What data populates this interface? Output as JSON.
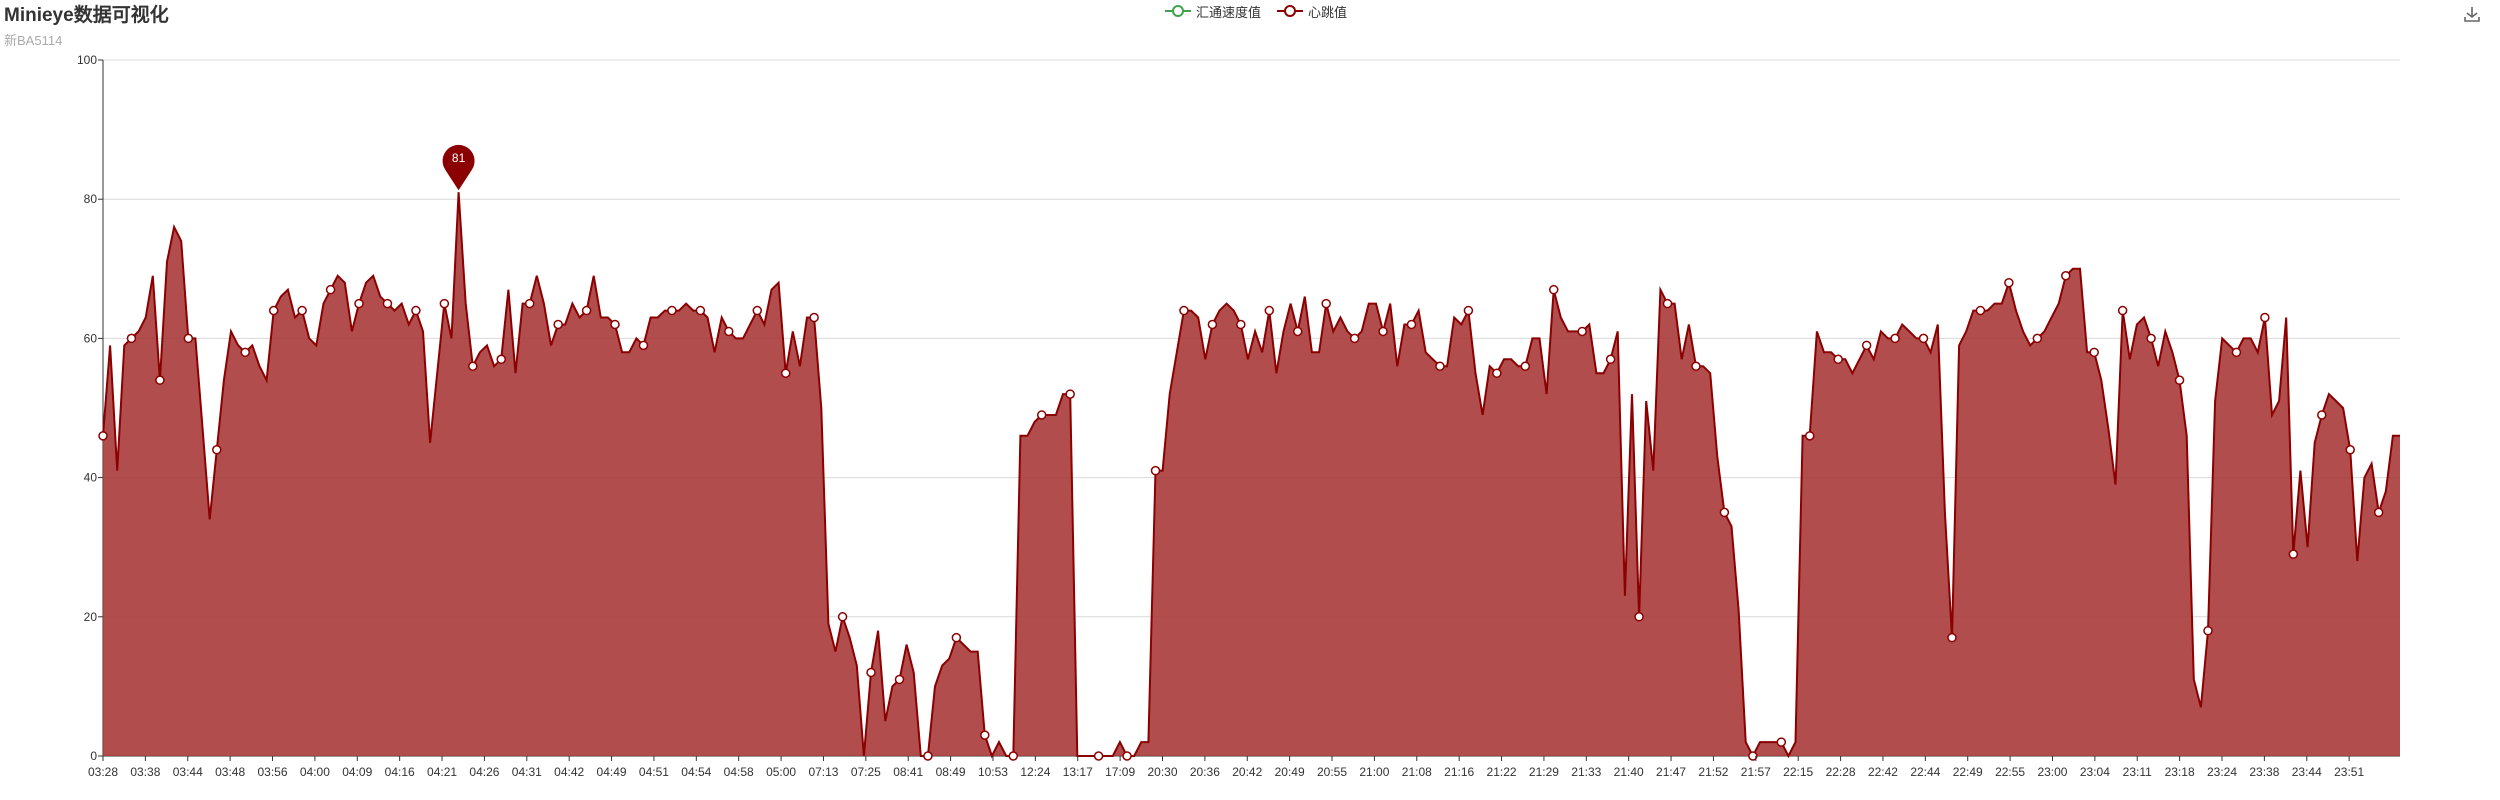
{
  "header": {
    "title": "Minieye数据可视化",
    "subtitle": "新BA5114"
  },
  "legend": [
    {
      "label": "汇通速度值",
      "color": "#3fa34d"
    },
    {
      "label": "心跳值",
      "color": "#8b0000"
    }
  ],
  "toolbar": {
    "download_icon": "download-icon"
  },
  "chart_data": {
    "type": "area",
    "title": "Minieye数据可视化",
    "subtitle": "新BA5114",
    "ylim": [
      0,
      100
    ],
    "yticks": [
      0,
      20,
      40,
      60,
      80,
      100
    ],
    "grid": true,
    "legend_position": "top-center",
    "x_tick_labels": [
      "03:28",
      "03:38",
      "03:44",
      "03:48",
      "03:56",
      "04:00",
      "04:09",
      "04:16",
      "04:21",
      "04:26",
      "04:31",
      "04:42",
      "04:49",
      "04:51",
      "04:54",
      "04:58",
      "05:00",
      "07:13",
      "07:25",
      "08:41",
      "08:49",
      "10:53",
      "12:24",
      "13:17",
      "17:09",
      "20:30",
      "20:36",
      "20:42",
      "20:49",
      "20:55",
      "21:00",
      "21:08",
      "21:16",
      "21:22",
      "21:29",
      "21:33",
      "21:40",
      "21:47",
      "21:52",
      "21:57",
      "22:15",
      "22:28",
      "22:42",
      "22:44",
      "22:49",
      "22:55",
      "23:00",
      "23:04",
      "23:11",
      "23:18",
      "23:24",
      "23:38",
      "23:44",
      "23:51"
    ],
    "max_marker": {
      "label": "81",
      "value": 81
    },
    "series": [
      {
        "name": "汇通速度值",
        "color": "#3fa34d",
        "values": []
      },
      {
        "name": "心跳值",
        "color": "#8b0000",
        "values": [
          46,
          59,
          41,
          59,
          60,
          61,
          63,
          69,
          54,
          71,
          76,
          74,
          60,
          60,
          47,
          34,
          44,
          54,
          61,
          59,
          58,
          59,
          56,
          54,
          64,
          66,
          67,
          63,
          64,
          60,
          59,
          65,
          67,
          69,
          68,
          61,
          65,
          68,
          69,
          66,
          65,
          64,
          65,
          62,
          64,
          61,
          45,
          55,
          65,
          60,
          81,
          65,
          56,
          58,
          59,
          56,
          57,
          67,
          55,
          65,
          65,
          69,
          65,
          59,
          62,
          62,
          65,
          63,
          64,
          69,
          63,
          63,
          62,
          58,
          58,
          60,
          59,
          63,
          63,
          64,
          64,
          64,
          65,
          64,
          64,
          63,
          58,
          63,
          61,
          60,
          60,
          62,
          64,
          62,
          67,
          68,
          55,
          61,
          56,
          63,
          63,
          50,
          19,
          15,
          20,
          17,
          13,
          0,
          12,
          18,
          5,
          10,
          11,
          16,
          12,
          0,
          0,
          10,
          13,
          14,
          17,
          16,
          15,
          15,
          3,
          0,
          2,
          0,
          0,
          46,
          46,
          48,
          49,
          49,
          49,
          52,
          52,
          0,
          0,
          0,
          0,
          0,
          0,
          2,
          0,
          0,
          2,
          2,
          41,
          41,
          52,
          58,
          64,
          64,
          63,
          57,
          62,
          64,
          65,
          64,
          62,
          57,
          61,
          58,
          64,
          55,
          61,
          65,
          61,
          66,
          58,
          58,
          65,
          61,
          63,
          61,
          60,
          61,
          65,
          65,
          61,
          65,
          56,
          62,
          62,
          64,
          58,
          57,
          56,
          56,
          63,
          62,
          64,
          55,
          49,
          56,
          55,
          57,
          57,
          56,
          56,
          60,
          60,
          52,
          67,
          63,
          61,
          61,
          61,
          62,
          55,
          55,
          57,
          61,
          23,
          52,
          20,
          51,
          41,
          67,
          65,
          65,
          57,
          62,
          56,
          56,
          55,
          43,
          35,
          33,
          21,
          2,
          0,
          2,
          2,
          2,
          2,
          0,
          2,
          46,
          46,
          61,
          58,
          58,
          57,
          57,
          55,
          57,
          59,
          57,
          61,
          60,
          60,
          62,
          61,
          60,
          60,
          58,
          62,
          35,
          17,
          59,
          61,
          64,
          64,
          64,
          65,
          65,
          68,
          64,
          61,
          59,
          60,
          61,
          63,
          65,
          69,
          70,
          70,
          58,
          58,
          54,
          47,
          39,
          64,
          57,
          62,
          63,
          60,
          56,
          61,
          58,
          54,
          46,
          11,
          7,
          18,
          51,
          60,
          59,
          58,
          60,
          60,
          58,
          63,
          49,
          51,
          63,
          29,
          41,
          30,
          45,
          49,
          52,
          51,
          50,
          44,
          28,
          40,
          42,
          35,
          38,
          46,
          46
        ]
      }
    ]
  }
}
